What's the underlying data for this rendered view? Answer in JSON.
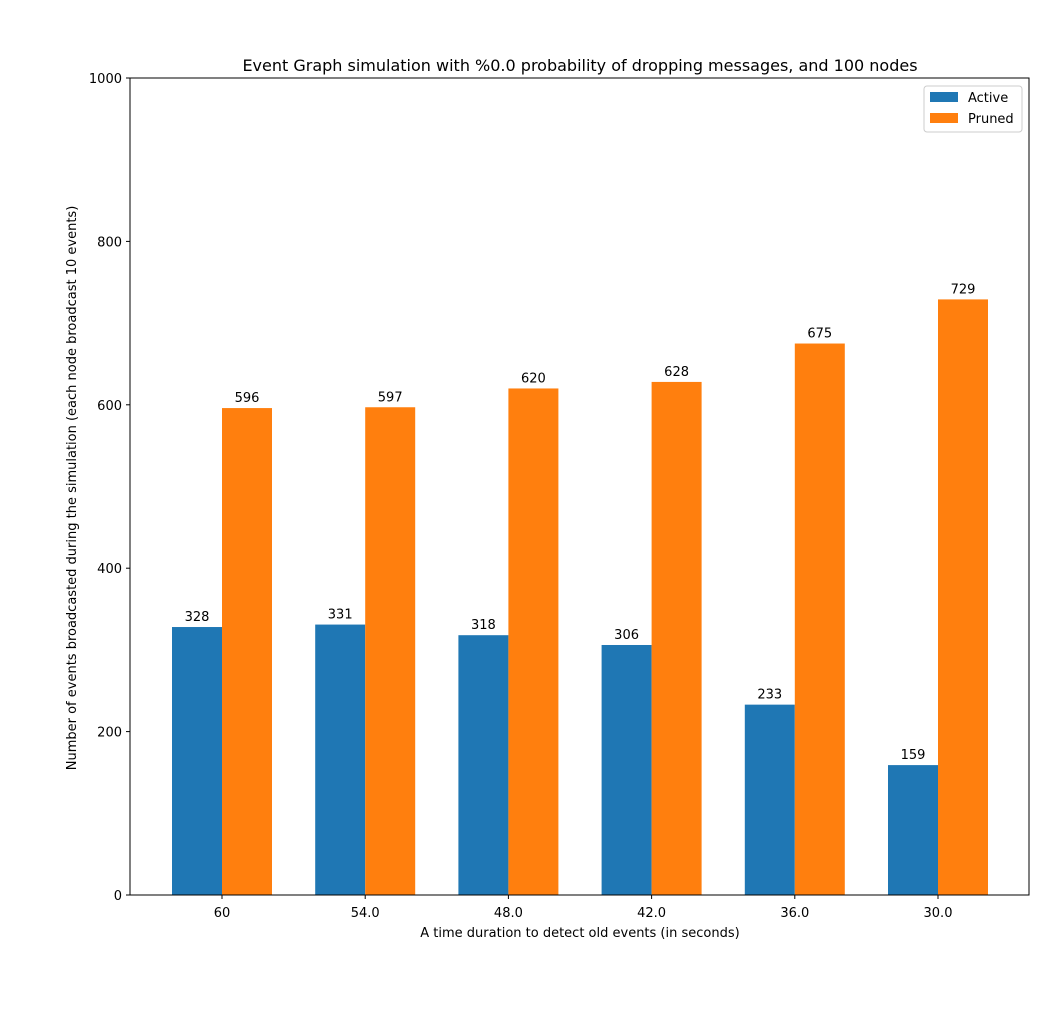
{
  "chart_data": {
    "type": "bar",
    "title": "Event Graph simulation with %0.0 probability of dropping messages, and 100 nodes",
    "xlabel": "A time duration to detect old events (in seconds)",
    "ylabel": "Number of events broadcasted during the simulation (each node broadcast 10 events)",
    "categories": [
      "60",
      "54.0",
      "48.0",
      "42.0",
      "36.0",
      "30.0"
    ],
    "series": [
      {
        "name": "Active",
        "color": "#1f77b4",
        "values": [
          328,
          331,
          318,
          306,
          233,
          159
        ]
      },
      {
        "name": "Pruned",
        "color": "#ff7f0e",
        "values": [
          596,
          597,
          620,
          628,
          675,
          729
        ]
      }
    ],
    "ylim": [
      0,
      1000
    ],
    "yticks": [
      0,
      200,
      400,
      600,
      800,
      1000
    ],
    "grid": false,
    "legend_position": "top-right"
  }
}
